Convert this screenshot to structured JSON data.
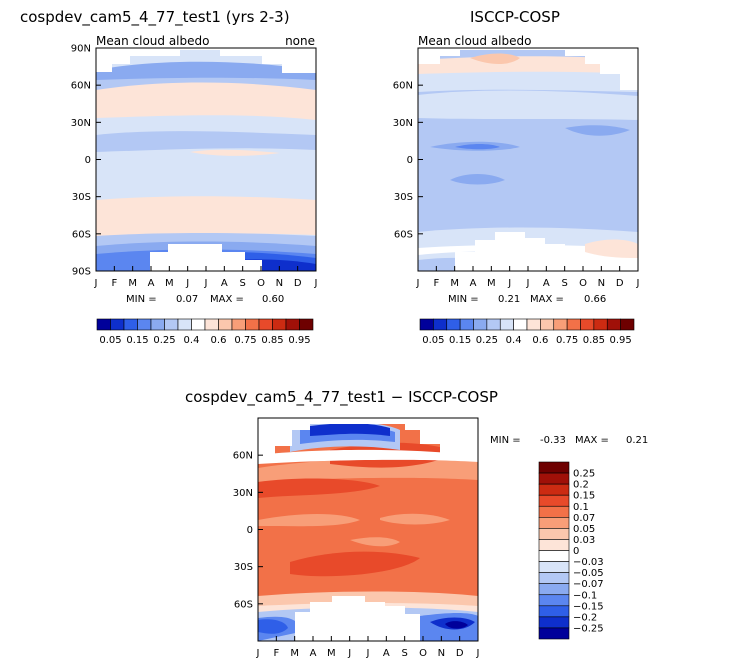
{
  "months": [
    "J",
    "F",
    "M",
    "A",
    "M",
    "J",
    "J",
    "A",
    "S",
    "O",
    "N",
    "D",
    "J"
  ],
  "lat_labels": [
    "90N",
    "60N",
    "30N",
    "0",
    "30S",
    "60S",
    "90S"
  ],
  "lat_values": [
    90,
    60,
    30,
    0,
    -30,
    -60,
    -90
  ],
  "colors": {
    "b6": "#00009a",
    "b5": "#0e2fcc",
    "b4": "#2f5fe8",
    "b3": "#5b86f0",
    "b2": "#8aaaf0",
    "b1": "#b3c8f4",
    "b0": "#d8e4f8",
    "w": "#ffffff",
    "r0": "#fde4d8",
    "r1": "#fbc7ad",
    "r2": "#f89e78",
    "r3": "#f27148",
    "r4": "#e84a2a",
    "r5": "#cc2b12",
    "r6": "#a01008",
    "r7": "#6e0000",
    "missing": "#ffffff"
  },
  "panels": [
    {
      "title": "cospdev_cam5_4_77_test1 (yrs 2-3)",
      "left_label": "Mean cloud albedo",
      "right_label": "none",
      "min_label": "MIN =",
      "min_value": "0.07",
      "max_label": "MAX =",
      "max_value": "0.60"
    },
    {
      "title": "ISCCP-COSP",
      "left_label": "Mean cloud albedo",
      "right_label": "",
      "min_label": "MIN =",
      "min_value": "0.21",
      "max_label": "MAX =",
      "max_value": "0.66"
    },
    {
      "title": "cospdev_cam5_4_77_test1 − ISCCP-COSP",
      "min_label": "MIN =",
      "min_value": "-0.33",
      "max_label": "MAX =",
      "max_value": "0.21"
    }
  ],
  "colorbar_abs": {
    "labels": [
      "0.05",
      "0.15",
      "0.25",
      "0.4",
      "0.6",
      "0.75",
      "0.85",
      "0.95"
    ],
    "colors": [
      "#00009a",
      "#0e2fcc",
      "#2f5fe8",
      "#5b86f0",
      "#8aaaf0",
      "#b3c8f4",
      "#d8e4f8",
      "#ffffff",
      "#fde4d8",
      "#fbc7ad",
      "#f89e78",
      "#f27148",
      "#e84a2a",
      "#cc2b12",
      "#a01008",
      "#6e0000"
    ]
  },
  "colorbar_diff": {
    "labels": [
      "0.25",
      "0.2",
      "0.15",
      "0.1",
      "0.07",
      "0.05",
      "0.03",
      "0",
      "-0.03",
      "-0.05",
      "-0.07",
      "-0.1",
      "-0.15",
      "-0.2",
      "-0.25"
    ],
    "colors": [
      "#6e0000",
      "#a01008",
      "#cc2b12",
      "#e84a2a",
      "#f27148",
      "#f89e78",
      "#fbc7ad",
      "#fde4d8",
      "#ffffff",
      "#d8e4f8",
      "#b3c8f4",
      "#8aaaf0",
      "#5b86f0",
      "#2f5fe8",
      "#0e2fcc",
      "#00009a"
    ]
  },
  "chart_data": [
    {
      "type": "heatmap",
      "title": "cospdev_cam5_4_77_test1 (yrs 2-3)",
      "subtitle": "Mean cloud albedo",
      "units": "none",
      "x": [
        "J",
        "F",
        "M",
        "A",
        "M",
        "J",
        "J",
        "A",
        "S",
        "O",
        "N",
        "D",
        "J"
      ],
      "y": [
        "90N",
        "60N",
        "30N",
        "0",
        "30S",
        "60S",
        "90S"
      ],
      "min": 0.07,
      "max": 0.6,
      "zonal_profile": [
        {
          "lat": 80,
          "value": 0.3
        },
        {
          "lat": 60,
          "value": 0.45
        },
        {
          "lat": 40,
          "value": 0.55
        },
        {
          "lat": 20,
          "value": 0.45
        },
        {
          "lat": 0,
          "value": 0.45
        },
        {
          "lat": -10,
          "value": 0.4
        },
        {
          "lat": -30,
          "value": 0.45
        },
        {
          "lat": -45,
          "value": 0.55
        },
        {
          "lat": -60,
          "value": 0.45
        },
        {
          "lat": -70,
          "value": 0.2
        },
        {
          "lat": -80,
          "value": 0.1
        }
      ]
    },
    {
      "type": "heatmap",
      "title": "ISCCP-COSP",
      "subtitle": "Mean cloud albedo",
      "x": [
        "J",
        "F",
        "M",
        "A",
        "M",
        "J",
        "J",
        "A",
        "S",
        "O",
        "N",
        "D",
        "J"
      ],
      "y": [
        "60N",
        "30N",
        "0",
        "30S",
        "60S"
      ],
      "min": 0.21,
      "max": 0.66,
      "zonal_profile": [
        {
          "lat": 80,
          "value": 0.55
        },
        {
          "lat": 60,
          "value": 0.4
        },
        {
          "lat": 30,
          "value": 0.3
        },
        {
          "lat": 0,
          "value": 0.3
        },
        {
          "lat": -30,
          "value": 0.3
        },
        {
          "lat": -60,
          "value": 0.35
        },
        {
          "lat": -75,
          "value": 0.45
        }
      ]
    },
    {
      "type": "heatmap",
      "title": "cospdev_cam5_4_77_test1 − ISCCP-COSP",
      "x": [
        "J",
        "F",
        "M",
        "A",
        "M",
        "J",
        "J",
        "A",
        "S",
        "O",
        "N",
        "D",
        "J"
      ],
      "y": [
        "60N",
        "30N",
        "0",
        "30S",
        "60S"
      ],
      "min": -0.33,
      "max": 0.21,
      "zonal_profile": [
        {
          "lat": 80,
          "value": -0.15
        },
        {
          "lat": 70,
          "value": 0.05
        },
        {
          "lat": 45,
          "value": 0.15
        },
        {
          "lat": 20,
          "value": 0.1
        },
        {
          "lat": 0,
          "value": 0.1
        },
        {
          "lat": -30,
          "value": 0.15
        },
        {
          "lat": -55,
          "value": 0.1
        },
        {
          "lat": -65,
          "value": -0.05
        },
        {
          "lat": -80,
          "value": -0.2
        }
      ]
    }
  ]
}
